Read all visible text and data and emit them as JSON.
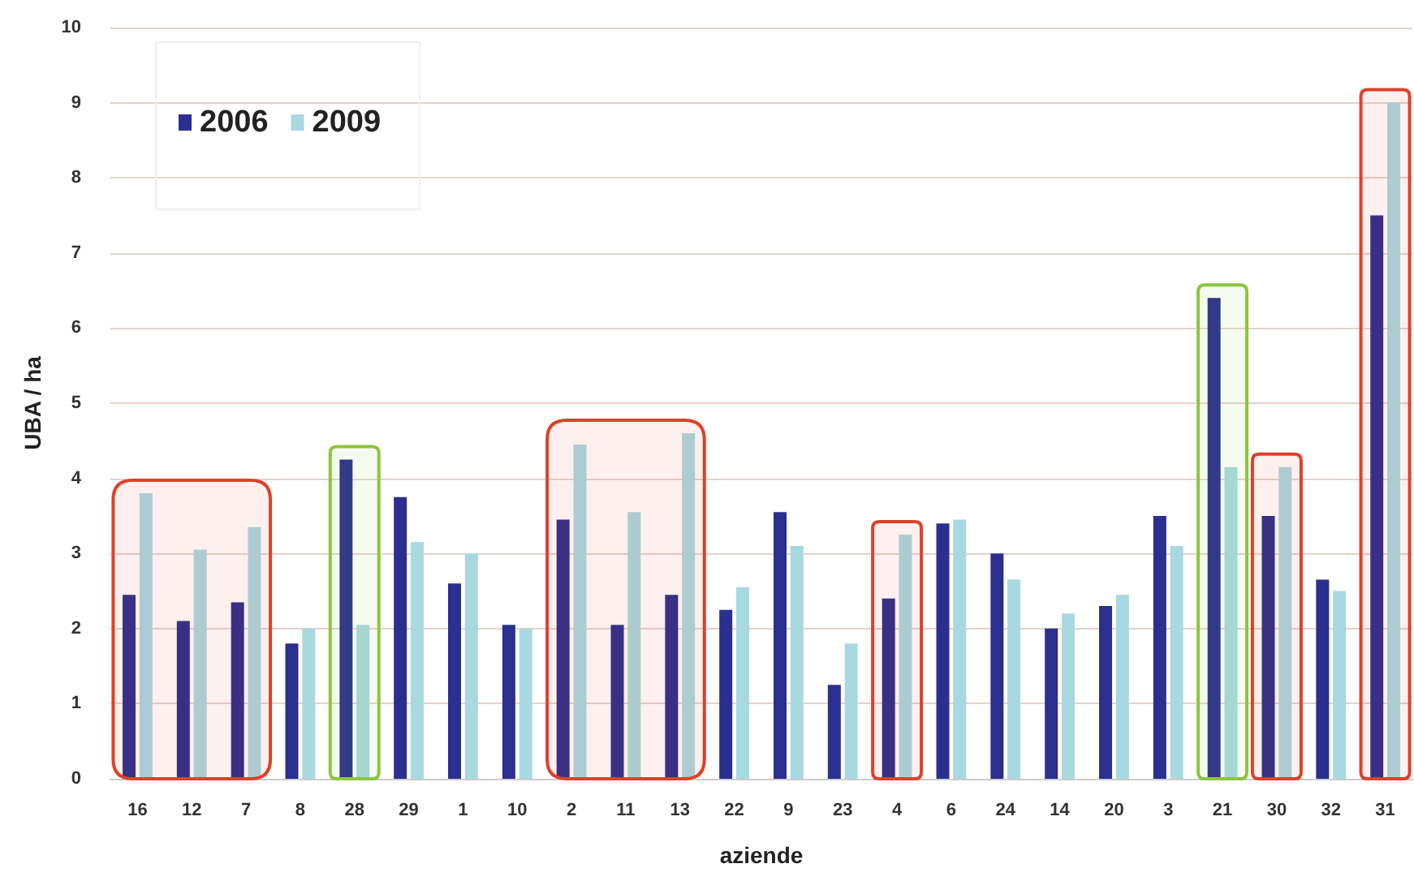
{
  "chart_data": {
    "type": "bar",
    "xlabel": "aziende",
    "ylabel": "UBA / ha",
    "categories": [
      "16",
      "12",
      "7",
      "8",
      "28",
      "29",
      "1",
      "10",
      "2",
      "11",
      "13",
      "22",
      "9",
      "23",
      "4",
      "6",
      "24",
      "14",
      "20",
      "3",
      "21",
      "30",
      "32",
      "31"
    ],
    "series": [
      {
        "name": "2006",
        "color": "#2b2f8f",
        "values": [
          2.45,
          2.1,
          2.35,
          1.8,
          4.25,
          3.75,
          2.6,
          2.05,
          3.45,
          2.05,
          2.45,
          2.25,
          3.55,
          1.25,
          2.4,
          3.4,
          3.0,
          2.0,
          2.3,
          3.5,
          6.4,
          3.5,
          2.65,
          7.5
        ]
      },
      {
        "name": "2009",
        "color": "#a8d8e0",
        "values": [
          3.8,
          3.05,
          3.35,
          2.0,
          2.05,
          3.15,
          3.0,
          2.0,
          4.45,
          3.55,
          4.6,
          2.55,
          3.1,
          1.8,
          3.25,
          3.45,
          2.65,
          2.2,
          2.45,
          3.1,
          4.15,
          4.15,
          2.5,
          9.0
        ]
      }
    ],
    "ylim": [
      0,
      10
    ],
    "yticks": [
      0,
      1,
      2,
      3,
      4,
      5,
      6,
      7,
      8,
      9,
      10
    ],
    "grid": "y",
    "legend": "top left",
    "bands": [
      {
        "axis": "x",
        "from": "16",
        "to": "7",
        "color": "#e0402a"
      },
      {
        "axis": "x",
        "from": "28",
        "to": "28",
        "color": "#8cc63f"
      },
      {
        "axis": "x",
        "from": "2",
        "to": "13",
        "color": "#e0402a"
      },
      {
        "axis": "x",
        "from": "4",
        "to": "4",
        "color": "#e0402a"
      },
      {
        "axis": "x",
        "from": "21",
        "to": "21",
        "color": "#8cc63f"
      },
      {
        "axis": "x",
        "from": "30",
        "to": "30",
        "color": "#e0402a"
      },
      {
        "axis": "x",
        "from": "31",
        "to": "31",
        "color": "#e0402a"
      }
    ]
  }
}
